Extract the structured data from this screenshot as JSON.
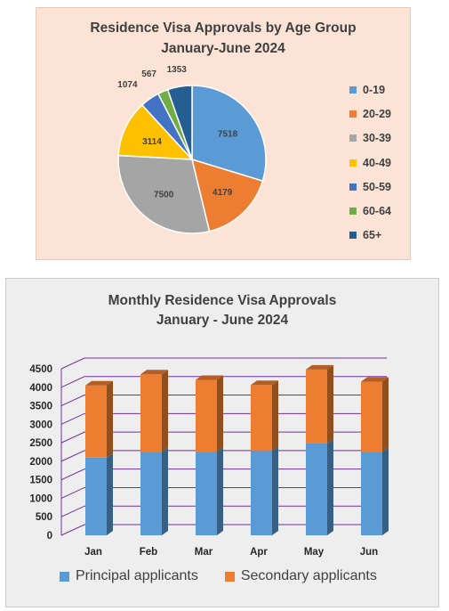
{
  "chart_data": [
    {
      "type": "pie",
      "title": "Residence Visa Approvals by Age Group",
      "subtitle": "January-June 2024",
      "categories": [
        "0-19",
        "20-29",
        "30-39",
        "40-49",
        "50-59",
        "60-64",
        "65+"
      ],
      "values": [
        7518,
        4179,
        7500,
        3114,
        1074,
        567,
        1353
      ],
      "colors": [
        "#5b9bd5",
        "#ed7d31",
        "#a5a5a5",
        "#ffc000",
        "#4472c4",
        "#70ad47",
        "#255e91"
      ],
      "legend_position": "right"
    },
    {
      "type": "bar",
      "stacked": true,
      "three_d": true,
      "title": "Monthly Residence Visa Approvals",
      "subtitle": "January - June 2024",
      "categories": [
        "Jan",
        "Feb",
        "Mar",
        "Apr",
        "May",
        "Jun"
      ],
      "series": [
        {
          "name": "Principal applicants",
          "color": "#5b9bd5",
          "values": [
            2100,
            2250,
            2250,
            2280,
            2480,
            2250
          ]
        },
        {
          "name": "Secondary applicants",
          "color": "#ed7d31",
          "values": [
            1950,
            2100,
            1950,
            1780,
            2000,
            1900
          ]
        }
      ],
      "yticks": [
        0,
        500,
        1000,
        1500,
        2000,
        2500,
        3000,
        3500,
        4000,
        4500
      ],
      "ylim": [
        0,
        4500
      ],
      "grid": true,
      "gridline_color": "#7030a0",
      "legend_position": "bottom"
    }
  ]
}
